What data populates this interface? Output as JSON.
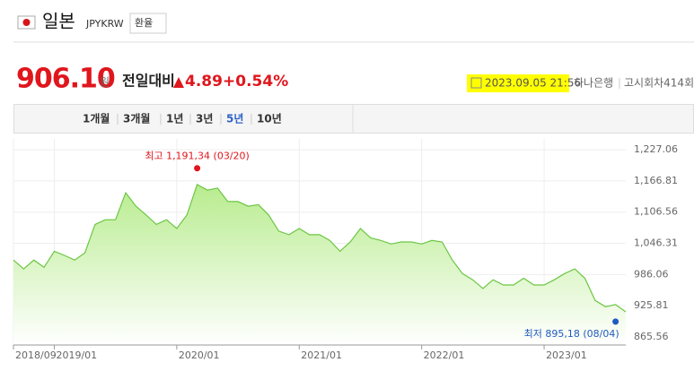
{
  "header": {
    "name": "일본",
    "code": "JPYKRW",
    "button": "환율"
  },
  "quote": {
    "price": "906.10",
    "unit": "원",
    "change_label": "전일대비",
    "change": "4.89",
    "change_pct": "+0.54%",
    "datetime": "2023.09.05 21:56",
    "bank": "하나은행",
    "round": "고시회차414회"
  },
  "tabs": [
    "1개월",
    "3개월",
    "1년",
    "3년",
    "5년",
    "10년"
  ],
  "active_tab": 4,
  "chart_data": {
    "type": "area",
    "color": "#6cc644",
    "x": [
      "2018/09",
      "2018/10",
      "2018/11",
      "2018/12",
      "2019/01",
      "2019/02",
      "2019/03",
      "2019/04",
      "2019/05",
      "2019/06",
      "2019/07",
      "2019/08",
      "2019/09",
      "2019/10",
      "2019/11",
      "2019/12",
      "2020/01",
      "2020/02",
      "2020/03",
      "2020/04",
      "2020/05",
      "2020/06",
      "2020/07",
      "2020/08",
      "2020/09",
      "2020/10",
      "2020/11",
      "2020/12",
      "2021/01",
      "2021/02",
      "2021/03",
      "2021/04",
      "2021/05",
      "2021/06",
      "2021/07",
      "2021/08",
      "2021/09",
      "2021/10",
      "2021/11",
      "2021/12",
      "2022/01",
      "2022/02",
      "2022/03",
      "2022/04",
      "2022/05",
      "2022/06",
      "2022/07",
      "2022/08",
      "2022/09",
      "2022/10",
      "2022/11",
      "2022/12",
      "2023/01",
      "2023/02",
      "2023/03",
      "2023/04",
      "2023/05",
      "2023/06",
      "2023/07",
      "2023/08",
      "2023/09"
    ],
    "values": [
      1014,
      997,
      1014,
      1000,
      1031,
      1023,
      1014,
      1028,
      1083,
      1092,
      1092,
      1144,
      1118,
      1101,
      1083,
      1092,
      1075,
      1101,
      1160,
      1149,
      1153,
      1127,
      1127,
      1118,
      1121,
      1101,
      1070,
      1063,
      1075,
      1063,
      1063,
      1052,
      1031,
      1049,
      1075,
      1057,
      1052,
      1045,
      1049,
      1049,
      1045,
      1052,
      1049,
      1014,
      988,
      976,
      959,
      976,
      966,
      966,
      979,
      966,
      966,
      976,
      988,
      997,
      979,
      936,
      924,
      928,
      914
    ],
    "xlim": [
      "2018/09",
      "2023/09"
    ],
    "xticks": [
      "2018/09",
      "2019/01",
      "2020/01",
      "2021/01",
      "2022/01",
      "2023/01"
    ],
    "ylim": [
      850,
      1248
    ],
    "yticks": [
      {
        "value": 865.56,
        "label": "865.56"
      },
      {
        "value": 925.81,
        "label": "925.81"
      },
      {
        "value": 986.06,
        "label": "986.06"
      },
      {
        "value": 1046.31,
        "label": "1,046.31"
      },
      {
        "value": 1106.56,
        "label": "1,106.56"
      },
      {
        "value": 1166.81,
        "label": "1,166.81"
      },
      {
        "value": 1227.06,
        "label": "1,227.06"
      }
    ],
    "grid": true,
    "annotations": [
      {
        "text": "최고 1,191,34 (03/20)",
        "x": "2020/03",
        "value": 1191.34,
        "color": "#e0161d"
      },
      {
        "text": "최저 895,18 (08/04)",
        "x": "2023/08",
        "value": 895.18,
        "color": "#1e5bbf"
      }
    ]
  }
}
